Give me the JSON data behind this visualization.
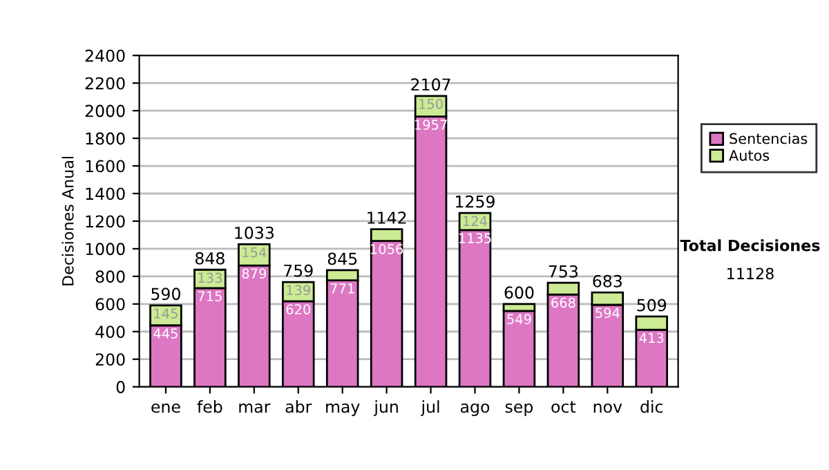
{
  "chart_data": {
    "type": "bar",
    "stacked": true,
    "ylabel": "Decisiones Anual",
    "categories": [
      "ene",
      "feb",
      "mar",
      "abr",
      "may",
      "jun",
      "jul",
      "ago",
      "sep",
      "oct",
      "nov",
      "dic"
    ],
    "series": [
      {
        "name": "Sentencias",
        "color": "#dd77c4",
        "values": [
          445,
          715,
          879,
          620,
          771,
          1056,
          1957,
          1135,
          549,
          668,
          594,
          413
        ],
        "value_labels": [
          "445",
          "715",
          "879",
          "620",
          "771",
          "1056",
          "1957",
          "1135",
          "549",
          "668",
          "594",
          "413"
        ]
      },
      {
        "name": "Autos",
        "color": "#cceb94",
        "values": [
          145,
          133,
          154,
          139,
          74,
          86,
          150,
          124,
          51,
          85,
          89,
          96
        ],
        "value_labels": [
          "145",
          "133",
          "154",
          "139",
          null,
          null,
          "150",
          "124",
          null,
          null,
          null,
          null
        ]
      }
    ],
    "totals": [
      "590",
      "848",
      "1033",
      "759",
      "845",
      "1142",
      "2107",
      "1259",
      "600",
      "753",
      "683",
      "509"
    ],
    "ylim": [
      0,
      2400
    ],
    "yticks": [
      0,
      200,
      400,
      600,
      800,
      1000,
      1200,
      1400,
      1600,
      1800,
      2000,
      2200,
      2400
    ],
    "grid": "y",
    "legend": "right",
    "annotations": [
      "Total Decisiones",
      "11128"
    ]
  }
}
